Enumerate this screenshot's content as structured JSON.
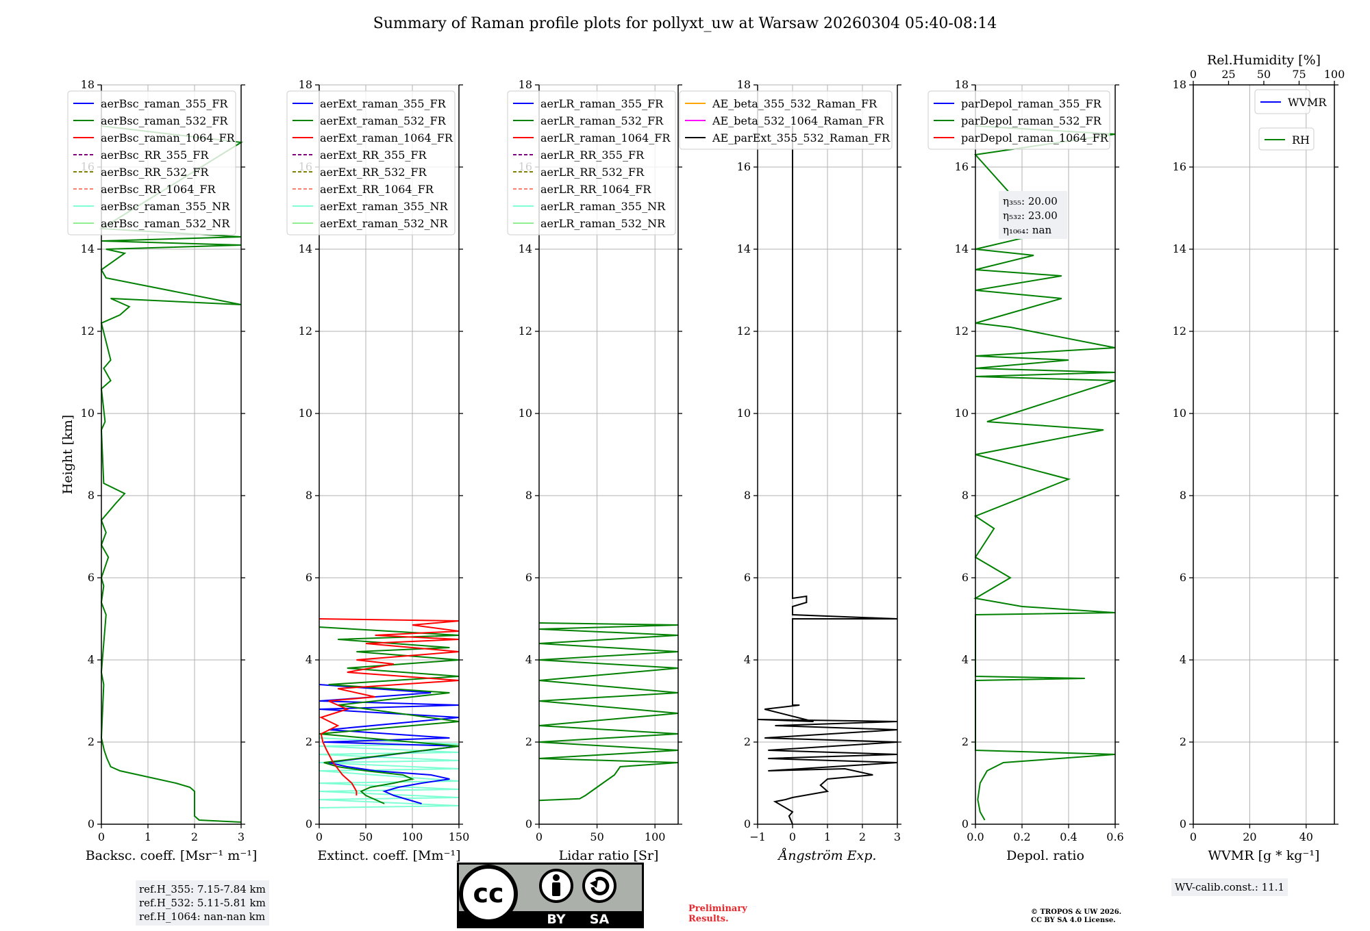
{
  "title": "Summary of Raman profile plots for pollyxt_uw at Warsaw 20260304 05:40-08:14",
  "chart_data": [
    {
      "type": "line",
      "xlabel": "Backsc. coeff. [Msr⁻¹ m⁻¹]",
      "ylabel": "Height [km]",
      "xlim": [
        0,
        3
      ],
      "ylim": [
        0,
        18
      ],
      "xticks": [
        "0",
        "1",
        "2",
        "3"
      ],
      "yticks": [
        "0",
        "2",
        "4",
        "6",
        "8",
        "10",
        "12",
        "14",
        "16",
        "18"
      ],
      "legend": [
        {
          "label": "aerBsc_raman_355_FR",
          "color": "#0000ff",
          "dash": false
        },
        {
          "label": "aerBsc_raman_532_FR",
          "color": "#008000",
          "dash": false
        },
        {
          "label": "aerBsc_raman_1064_FR",
          "color": "#ff0000",
          "dash": false
        },
        {
          "label": "aerBsc_RR_355_FR",
          "color": "#800080",
          "dash": true
        },
        {
          "label": "aerBsc_RR_532_FR",
          "color": "#808000",
          "dash": true
        },
        {
          "label": "aerBsc_RR_1064_FR",
          "color": "#fa8072",
          "dash": true
        },
        {
          "label": "aerBsc_raman_355_NR",
          "color": "#7fffd4",
          "dash": false
        },
        {
          "label": "aerBsc_raman_532_NR",
          "color": "#90ee90",
          "dash": false
        }
      ],
      "series": [
        {
          "name": "aerBsc_raman_532_FR",
          "color": "#008000",
          "x": [
            3.0,
            2.1,
            2.0,
            2.0,
            1.9,
            1.6,
            1.2,
            0.8,
            0.4,
            0.2,
            0.12,
            0.06,
            0.02,
            0.0,
            0.05,
            0.0,
            0.1,
            0.0,
            0.05,
            0.0,
            0.15,
            0.0,
            0.1,
            0.0,
            0.3,
            0.5,
            0.05,
            0.0,
            0.08,
            0.0,
            0.2,
            0.05,
            0.2,
            0.0,
            0.4,
            0.6,
            0.2,
            3.0,
            0.1,
            0.0,
            0.5,
            0.1,
            3.0,
            0.0,
            3.0,
            0.0,
            3.0,
            0.0
          ],
          "y": [
            0.05,
            0.1,
            0.2,
            0.8,
            0.9,
            1.0,
            1.1,
            1.2,
            1.3,
            1.4,
            1.6,
            1.8,
            2.0,
            2.1,
            3.4,
            3.7,
            5.1,
            5.4,
            5.8,
            6.0,
            6.5,
            6.8,
            7.1,
            7.4,
            7.8,
            8.05,
            8.3,
            9.6,
            9.8,
            10.6,
            10.8,
            11.1,
            11.3,
            12.2,
            12.4,
            12.6,
            12.8,
            12.65,
            13.3,
            13.5,
            13.9,
            14.0,
            14.1,
            14.2,
            14.3,
            14.5,
            16.6,
            17.0
          ]
        }
      ]
    },
    {
      "type": "line",
      "xlabel": "Extinct. coeff. [Mm⁻¹]",
      "xlim": [
        0,
        150
      ],
      "ylim": [
        0,
        18
      ],
      "xticks": [
        "0",
        "50",
        "100",
        "150"
      ],
      "yticks": [
        "0",
        "2",
        "4",
        "6",
        "8",
        "10",
        "12",
        "14",
        "16",
        "18"
      ],
      "legend": [
        {
          "label": "aerExt_raman_355_FR",
          "color": "#0000ff",
          "dash": false
        },
        {
          "label": "aerExt_raman_532_FR",
          "color": "#008000",
          "dash": false
        },
        {
          "label": "aerExt_raman_1064_FR",
          "color": "#ff0000",
          "dash": false
        },
        {
          "label": "aerExt_RR_355_FR",
          "color": "#800080",
          "dash": true
        },
        {
          "label": "aerExt_RR_532_FR",
          "color": "#808000",
          "dash": true
        },
        {
          "label": "aerExt_RR_1064_FR",
          "color": "#fa8072",
          "dash": true
        },
        {
          "label": "aerExt_raman_355_NR",
          "color": "#7fffd4",
          "dash": false
        },
        {
          "label": "aerExt_raman_532_NR",
          "color": "#90ee90",
          "dash": false
        }
      ],
      "series": [
        {
          "name": "aerExt_raman_355_NR",
          "color": "#7fffd4",
          "x": [
            0,
            150,
            0,
            150,
            0,
            150,
            0,
            150,
            0,
            150,
            0,
            150,
            0,
            150,
            0,
            150,
            0
          ],
          "y": [
            0.4,
            0.45,
            0.6,
            0.65,
            0.8,
            0.85,
            1.0,
            1.05,
            1.3,
            1.35,
            1.5,
            1.55,
            1.7,
            1.75,
            1.9,
            1.95,
            2.1
          ]
        },
        {
          "name": "aerExt_raman_355_FR",
          "color": "#0000ff",
          "x": [
            110,
            95,
            80,
            70,
            85,
            110,
            140,
            120,
            60,
            30,
            10,
            150,
            5,
            140,
            10,
            150,
            0,
            150,
            0,
            120,
            0
          ],
          "y": [
            0.5,
            0.6,
            0.7,
            0.8,
            0.9,
            1.0,
            1.1,
            1.2,
            1.3,
            1.4,
            1.5,
            1.9,
            2.0,
            2.1,
            2.3,
            2.6,
            2.8,
            2.9,
            3.0,
            3.2,
            3.4
          ]
        },
        {
          "name": "aerExt_raman_532_FR",
          "color": "#008000",
          "x": [
            70,
            60,
            50,
            45,
            55,
            80,
            100,
            90,
            50,
            20,
            5,
            150,
            0,
            150,
            20,
            140,
            10,
            150,
            30,
            150,
            40,
            140,
            20,
            150,
            0
          ],
          "y": [
            0.5,
            0.6,
            0.7,
            0.8,
            0.9,
            1.0,
            1.1,
            1.2,
            1.3,
            1.4,
            1.5,
            1.9,
            2.2,
            2.5,
            2.9,
            3.2,
            3.4,
            3.6,
            3.8,
            4.0,
            4.2,
            4.3,
            4.5,
            4.6,
            4.8
          ]
        },
        {
          "name": "aerExt_raman_1064_FR",
          "color": "#ff0000",
          "x": [
            40,
            40,
            35,
            25,
            15,
            8,
            4,
            2,
            20,
            2,
            30,
            10,
            60,
            20,
            150,
            30,
            80,
            40,
            150,
            50,
            150,
            60,
            150,
            100,
            150,
            0
          ],
          "y": [
            0.7,
            0.8,
            1.0,
            1.2,
            1.5,
            1.8,
            2.0,
            2.2,
            2.4,
            2.6,
            2.8,
            3.0,
            3.1,
            3.3,
            3.5,
            3.7,
            3.9,
            4.0,
            4.2,
            4.4,
            4.5,
            4.6,
            4.7,
            4.85,
            4.95,
            5.0
          ]
        }
      ]
    },
    {
      "type": "line",
      "xlabel": "Lidar ratio [Sr]",
      "xlim": [
        0,
        120
      ],
      "ylim": [
        0,
        18
      ],
      "xticks": [
        "0",
        "50",
        "100"
      ],
      "yticks": [
        "0",
        "2",
        "4",
        "6",
        "8",
        "10",
        "12",
        "14",
        "16",
        "18"
      ],
      "legend": [
        {
          "label": "aerLR_raman_355_FR",
          "color": "#0000ff",
          "dash": false
        },
        {
          "label": "aerLR_raman_532_FR",
          "color": "#008000",
          "dash": false
        },
        {
          "label": "aerLR_raman_1064_FR",
          "color": "#ff0000",
          "dash": false
        },
        {
          "label": "aerLR_RR_355_FR",
          "color": "#800080",
          "dash": true
        },
        {
          "label": "aerLR_RR_532_FR",
          "color": "#808000",
          "dash": true
        },
        {
          "label": "aerLR_RR_1064_FR",
          "color": "#fa8072",
          "dash": true
        },
        {
          "label": "aerLR_raman_355_NR",
          "color": "#7fffd4",
          "dash": false
        },
        {
          "label": "aerLR_raman_532_NR",
          "color": "#90ee90",
          "dash": false
        }
      ],
      "series": [
        {
          "name": "aerLR_raman_532_FR",
          "color": "#008000",
          "x": [
            0,
            35,
            40,
            45,
            50,
            55,
            60,
            65,
            70,
            120,
            0,
            120,
            0,
            120,
            0,
            120,
            0,
            120,
            0,
            120,
            0,
            120,
            0,
            120,
            0,
            120,
            0
          ],
          "y": [
            0.58,
            0.62,
            0.7,
            0.8,
            0.9,
            1.0,
            1.1,
            1.2,
            1.4,
            1.5,
            1.6,
            1.8,
            2.0,
            2.2,
            2.4,
            2.7,
            3.0,
            3.2,
            3.5,
            3.8,
            4.0,
            4.2,
            4.4,
            4.6,
            4.75,
            4.85,
            4.9
          ]
        }
      ]
    },
    {
      "type": "line",
      "xlabel": "Ångström Exp.",
      "xlim": [
        -1,
        3
      ],
      "ylim": [
        0,
        18
      ],
      "xticks": [
        "−1",
        "0",
        "1",
        "2",
        "3"
      ],
      "yticks": [
        "0",
        "2",
        "4",
        "6",
        "8",
        "10",
        "12",
        "14",
        "16",
        "18"
      ],
      "legend": [
        {
          "label": "AE_beta_355_532_Raman_FR",
          "color": "#ffa500",
          "dash": false
        },
        {
          "label": "AE_beta_532_1064_Raman_FR",
          "color": "#ff00ff",
          "dash": false
        },
        {
          "label": "AE_parExt_355_532_Raman_FR",
          "color": "#000000",
          "dash": false
        }
      ],
      "series": [
        {
          "name": "AE_parExt_355_532_Raman_FR",
          "color": "#000000",
          "x": [
            0,
            -0.1,
            0.0,
            -0.5,
            -0.2,
            0.0,
            1.0,
            0.8,
            1.0,
            2.3,
            1.5,
            -0.7,
            3.0,
            -0.7,
            3.0,
            -0.7,
            3.0,
            -0.8,
            3.0,
            -0.5,
            3.0,
            -1.0,
            0.6,
            -0.8,
            0.2,
            0.0,
            0.0,
            3.0,
            0.0,
            0.0,
            0.4,
            0.4,
            0.0,
            0.0
          ],
          "y": [
            0,
            0.2,
            0.3,
            0.55,
            0.6,
            0.65,
            0.8,
            0.95,
            1.1,
            1.2,
            1.35,
            1.3,
            1.5,
            1.6,
            1.7,
            1.8,
            2.0,
            2.1,
            2.3,
            2.4,
            2.5,
            2.55,
            2.5,
            2.8,
            2.9,
            2.9,
            5.0,
            5.0,
            5.1,
            5.3,
            5.4,
            5.55,
            5.5,
            17.0
          ]
        }
      ]
    },
    {
      "type": "line",
      "xlabel": "Depol. ratio",
      "xlim": [
        0,
        0.6
      ],
      "ylim": [
        0,
        18
      ],
      "xticks": [
        "0.0",
        "0.2",
        "0.4",
        "0.6"
      ],
      "yticks": [
        "0",
        "2",
        "4",
        "6",
        "8",
        "10",
        "12",
        "14",
        "16",
        "18"
      ],
      "legend": [
        {
          "label": "parDepol_raman_355_FR",
          "color": "#0000ff",
          "dash": false
        },
        {
          "label": "parDepol_raman_532_FR",
          "color": "#008000",
          "dash": false
        },
        {
          "label": "parDepol_raman_1064_FR",
          "color": "#ff0000",
          "dash": false
        }
      ],
      "annotation": [
        "η₃₅₅: 20.00",
        "η₅₃₂: 23.00",
        "η₁₀₆₄: nan"
      ],
      "series": [
        {
          "name": "parDepol_raman_532_FR",
          "color": "#008000",
          "x": [
            0.04,
            0.02,
            0.01,
            0.02,
            0.05,
            0.12,
            0.6,
            0.0,
            0.0,
            0.47,
            0.0,
            0.0,
            0.6,
            0.2,
            0.0,
            0.15,
            0.0,
            0.08,
            0.0,
            0.4,
            0.0,
            0.55,
            0.05,
            0.6,
            0.0,
            0.6,
            0.0,
            0.4,
            0.0,
            0.6,
            0.15,
            0.0,
            0.37,
            0.0,
            0.37,
            0.0,
            0.25,
            0.0,
            0.3,
            0.0,
            0.6,
            0.0
          ],
          "y": [
            0.1,
            0.3,
            0.6,
            1.0,
            1.3,
            1.5,
            1.7,
            1.8,
            3.5,
            3.55,
            3.6,
            5.1,
            5.15,
            5.3,
            5.5,
            6.0,
            6.5,
            7.2,
            7.5,
            8.4,
            9.0,
            9.6,
            9.8,
            10.8,
            10.9,
            11.0,
            11.1,
            11.3,
            11.4,
            11.6,
            12.1,
            12.2,
            12.8,
            13.0,
            13.35,
            13.5,
            13.85,
            14.0,
            14.4,
            16.3,
            16.8,
            17.0
          ]
        }
      ]
    },
    {
      "type": "line",
      "xlabel": "WVMR [g * kg⁻¹]",
      "top_xlabel": "Rel.Humidity [%]",
      "xlim": [
        0,
        50
      ],
      "ylim": [
        0,
        18
      ],
      "xticks": [
        "0",
        "20",
        "40"
      ],
      "top_xticks": [
        "0",
        "25",
        "50",
        "75",
        "100"
      ],
      "yticks": [
        "0",
        "2",
        "4",
        "6",
        "8",
        "10",
        "12",
        "14",
        "16",
        "18"
      ],
      "legend": [
        {
          "label": "WVMR",
          "color": "#0000ff",
          "dash": false
        }
      ],
      "legend2": [
        {
          "label": "RH",
          "color": "#008000",
          "dash": false
        }
      ],
      "series": []
    }
  ],
  "info_boxes": {
    "refh_355": "ref.H_355: 7.15-7.84 km",
    "refh_532": "ref.H_532: 5.11-5.81 km",
    "refh_1064": "ref.H_1064: nan-nan km",
    "wv_calib": "WV-calib.const.: 11.1"
  },
  "license_badge": {
    "cc": "cc",
    "by": "BY",
    "sa": "SA"
  },
  "preliminary": {
    "line1": "Preliminary",
    "line2": "Results."
  },
  "copyright": {
    "line1": "© TROPOS & UW 2026.",
    "line2": "CC BY SA 4.0 License."
  },
  "colors": {
    "grid": "#b0b0b0",
    "axis": "#000000",
    "legend_border": "#cccccc"
  }
}
